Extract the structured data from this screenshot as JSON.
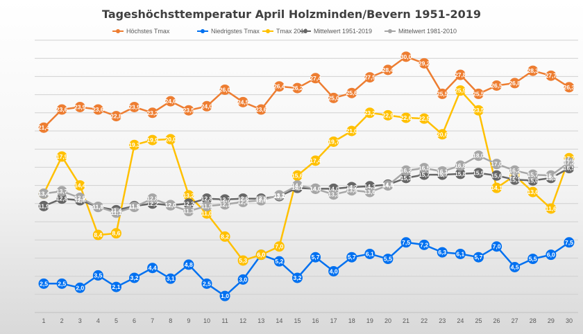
{
  "chart_data": {
    "type": "line",
    "title": "Tageshöchsttemperatur April Holzminden/Bevern 1951-2019",
    "xlabel": "",
    "ylabel": "",
    "ylim": [
      -1,
      32
    ],
    "grid": true,
    "legend_position": "top",
    "x": [
      "1",
      "2",
      "3",
      "4",
      "5",
      "6",
      "7",
      "8",
      "9",
      "10",
      "11",
      "12",
      "13",
      "14",
      "15",
      "16",
      "17",
      "18",
      "19",
      "20",
      "21",
      "22",
      "23",
      "24",
      "25",
      "26",
      "27",
      "28",
      "29",
      "30"
    ],
    "series": [
      {
        "name": "Höchstes Tmax",
        "color": "#ed7d31",
        "label_color": "#ffffff",
        "values": [
          21.4,
          23.6,
          23.9,
          23.6,
          22.8,
          23.9,
          23.2,
          24.6,
          23.5,
          24.0,
          26.0,
          24.5,
          23.6,
          26.4,
          26.2,
          27.4,
          25.0,
          25.6,
          27.5,
          28.4,
          30.0,
          29.2,
          25.5,
          27.8,
          25.5,
          26.5,
          26.8,
          28.3,
          27.7,
          26.3
        ]
      },
      {
        "name": "Niedrigstes Tmax",
        "color": "#0070f0",
        "label_color": "#ffffff",
        "values": [
          2.5,
          2.5,
          2.0,
          3.5,
          2.1,
          3.2,
          4.4,
          3.1,
          4.8,
          2.5,
          1.0,
          3.0,
          6.0,
          5.2,
          3.2,
          5.7,
          4.0,
          5.7,
          6.1,
          5.5,
          7.5,
          7.2,
          6.3,
          6.1,
          5.7,
          7.0,
          4.5,
          5.5,
          6.0,
          7.5
        ]
      },
      {
        "name": "Tmax 2019",
        "color": "#ffc000",
        "label_color": "#ffffff",
        "values": [
          13.4,
          17.9,
          14.4,
          8.4,
          8.6,
          19.3,
          19.9,
          20.0,
          13.2,
          11.0,
          8.2,
          5.3,
          6.0,
          7.0,
          15.6,
          17.4,
          19.7,
          21.0,
          23.2,
          22.9,
          22.6,
          22.5,
          20.6,
          25.9,
          23.5,
          14.1,
          15.6,
          13.6,
          11.6,
          17.7
        ]
      },
      {
        "name": "Mittelwert 1951-2019",
        "color": "#666666",
        "label_color": "#ffffff",
        "values": [
          11.9,
          12.8,
          12.6,
          11.8,
          11.4,
          11.9,
          12.2,
          12.0,
          12.2,
          12.8,
          12.7,
          12.8,
          12.8,
          13.1,
          14.1,
          14.0,
          14.0,
          14.2,
          14.3,
          14.5,
          15.3,
          15.7,
          15.7,
          15.8,
          15.9,
          15.6,
          15.1,
          15.0,
          15.3,
          16.5
        ]
      },
      {
        "name": "Mittelwert 1981-2010",
        "color": "#a6a6a6",
        "label_color": "#ffffff",
        "values": [
          13.4,
          13.7,
          12.9,
          11.8,
          11.1,
          11.8,
          12.8,
          12.0,
          11.3,
          11.9,
          12.1,
          12.4,
          12.6,
          13.2,
          14.4,
          14.0,
          13.3,
          13.8,
          13.6,
          14.4,
          16.2,
          16.5,
          16.1,
          16.8,
          18.0,
          17.0,
          16.2,
          15.7,
          15.6,
          17.2
        ]
      }
    ]
  }
}
